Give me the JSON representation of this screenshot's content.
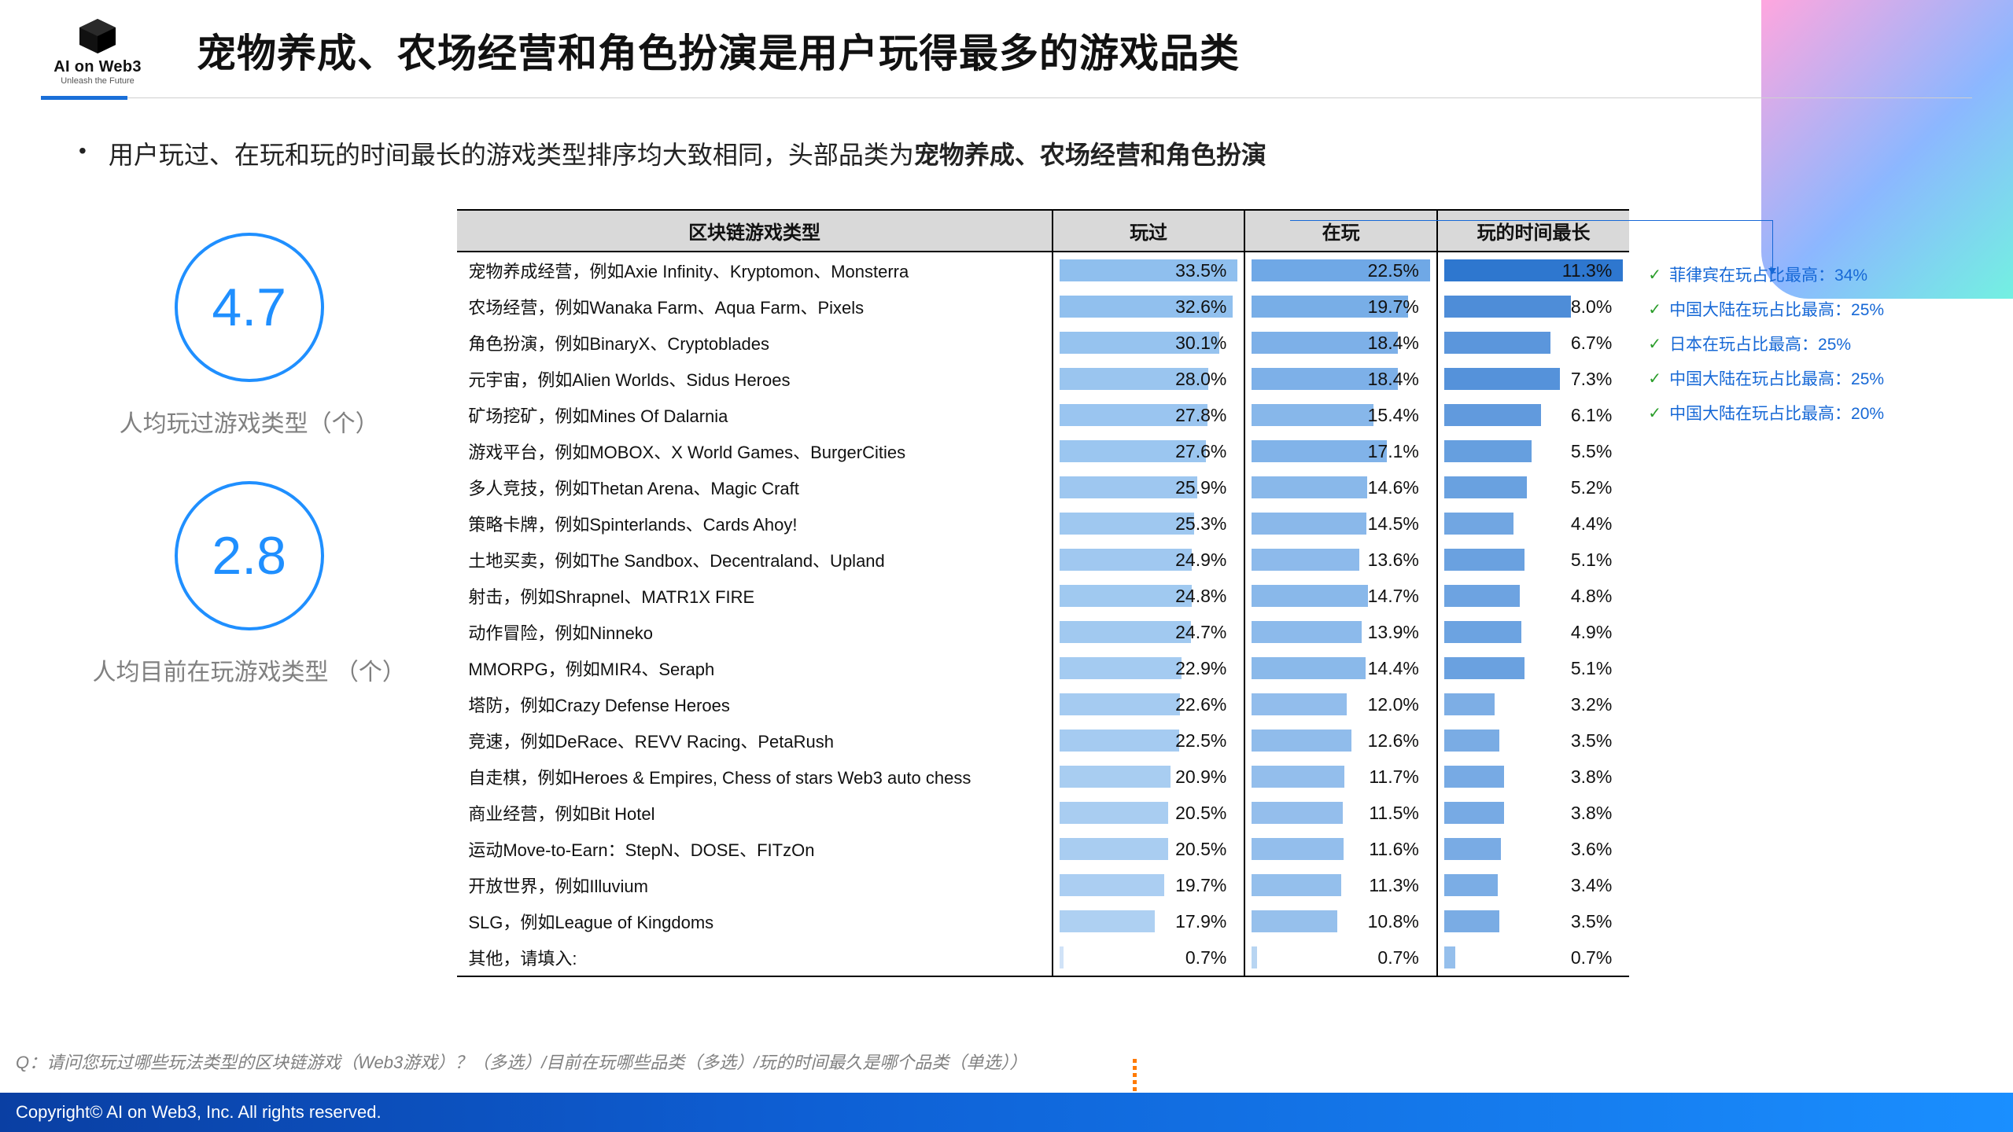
{
  "logo": {
    "brand": "AI on Web3",
    "tagline": "Unleash the Future"
  },
  "title": "宠物养成、农场经营和角色扮演是用户玩得最多的游戏品类",
  "bullet": {
    "prefix": "用户玩过、在玩和玩的时间最长的游戏类型排序均大致相同，头部品类为",
    "bold": "宠物养成、农场经营和角色扮演"
  },
  "kpis": [
    {
      "value": "4.7",
      "label": "人均玩过游戏类型（个）"
    },
    {
      "value": "2.8",
      "label": "人均目前在玩游戏类型 （个）"
    }
  ],
  "table": {
    "headers": [
      "区块链游戏类型",
      "玩过",
      "在玩",
      "玩的时间最长"
    ],
    "columns": [
      {
        "key": "played",
        "max": 33.5,
        "colors": {
          "low": "#d2e4f7",
          "high": "#8fbfee"
        }
      },
      {
        "key": "playing",
        "max": 22.5,
        "colors": {
          "low": "#bad6f2",
          "high": "#6fa8e6"
        }
      },
      {
        "key": "longest",
        "max": 11.3,
        "colors": {
          "low": "#9cc4ee",
          "high": "#2e77cf"
        }
      }
    ],
    "rows": [
      {
        "category": "宠物养成经营，例如Axie Infinity、Kryptomon、Monsterra",
        "played": 33.5,
        "playing": 22.5,
        "longest": 11.3
      },
      {
        "category": "农场经营，例如Wanaka Farm、Aqua Farm、Pixels",
        "played": 32.6,
        "playing": 19.7,
        "longest": 8.0
      },
      {
        "category": "角色扮演，例如BinaryX、Cryptoblades",
        "played": 30.1,
        "playing": 18.4,
        "longest": 6.7
      },
      {
        "category": "元宇宙，例如Alien Worlds、Sidus Heroes",
        "played": 28.0,
        "playing": 18.4,
        "longest": 7.3
      },
      {
        "category": "矿场挖矿，例如Mines Of Dalarnia",
        "played": 27.8,
        "playing": 15.4,
        "longest": 6.1
      },
      {
        "category": "游戏平台，例如MOBOX、X World Games、BurgerCities",
        "played": 27.6,
        "playing": 17.1,
        "longest": 5.5
      },
      {
        "category": "多人竞技，例如Thetan Arena、Magic Craft",
        "played": 25.9,
        "playing": 14.6,
        "longest": 5.2
      },
      {
        "category": "策略卡牌，例如Spinterlands、Cards Ahoy!",
        "played": 25.3,
        "playing": 14.5,
        "longest": 4.4
      },
      {
        "category": "土地买卖，例如The Sandbox、Decentraland、Upland",
        "played": 24.9,
        "playing": 13.6,
        "longest": 5.1
      },
      {
        "category": "射击，例如Shrapnel、MATR1X FIRE",
        "played": 24.8,
        "playing": 14.7,
        "longest": 4.8
      },
      {
        "category": "动作冒险，例如Ninneko",
        "played": 24.7,
        "playing": 13.9,
        "longest": 4.9
      },
      {
        "category": "MMORPG，例如MIR4、Seraph",
        "played": 22.9,
        "playing": 14.4,
        "longest": 5.1
      },
      {
        "category": "塔防，例如Crazy Defense Heroes",
        "played": 22.6,
        "playing": 12.0,
        "longest": 3.2
      },
      {
        "category": "竞速，例如DeRace、REVV Racing、PetaRush",
        "played": 22.5,
        "playing": 12.6,
        "longest": 3.5
      },
      {
        "category": "自走棋，例如Heroes & Empires, Chess of stars Web3 auto chess",
        "played": 20.9,
        "playing": 11.7,
        "longest": 3.8
      },
      {
        "category": "商业经营，例如Bit Hotel",
        "played": 20.5,
        "playing": 11.5,
        "longest": 3.8
      },
      {
        "category": "运动Move-to-Earn：StepN、DOSE、FITzOn",
        "played": 20.5,
        "playing": 11.6,
        "longest": 3.6
      },
      {
        "category": "开放世界，例如Illuvium",
        "played": 19.7,
        "playing": 11.3,
        "longest": 3.4
      },
      {
        "category": "SLG，例如League of Kingdoms",
        "played": 17.9,
        "playing": 10.8,
        "longest": 3.5
      },
      {
        "category": "其他，请填入:",
        "played": 0.7,
        "playing": 0.7,
        "longest": 0.7
      }
    ]
  },
  "notes": [
    "菲律宾在玩占比最高：34%",
    "中国大陆在玩占比最高：25%",
    "日本在玩占比最高：25%",
    "中国大陆在玩占比最高：25%",
    "中国大陆在玩占比最高：20%"
  ],
  "footnote": "Q：请问您玩过哪些玩法类型的区块链游戏（Web3游戏）？（多选）/目前在玩哪些品类（多选）/玩的时间最久是哪个品类（单选））",
  "footer": "Copyright© AI on Web3, Inc. All rights reserved."
}
